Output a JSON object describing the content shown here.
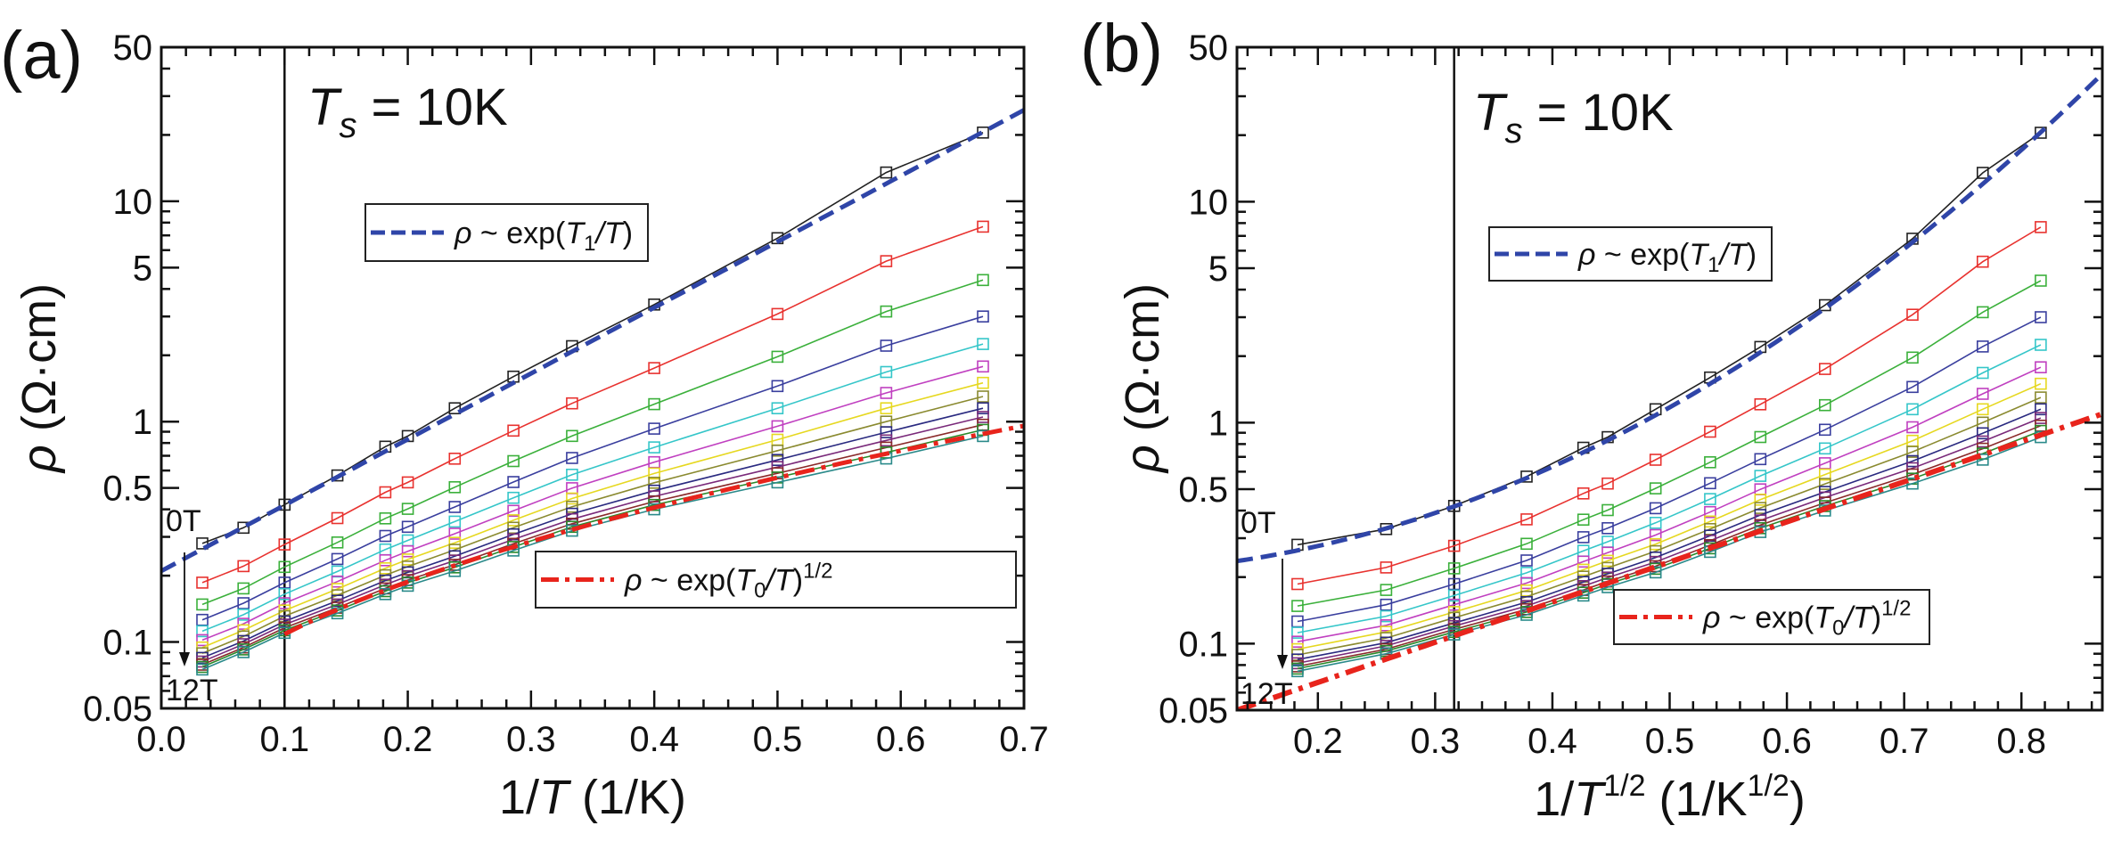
{
  "chart_data": [
    {
      "panel_label": "(a)",
      "type": "line",
      "yscale": "log",
      "xlim": [
        0.0,
        0.7
      ],
      "ylim": [
        0.05,
        50
      ],
      "xticks": [
        "0.0",
        "0.1",
        "0.2",
        "0.3",
        "0.4",
        "0.5",
        "0.6",
        "0.7"
      ],
      "xtick_values": [
        0.0,
        0.1,
        0.2,
        0.3,
        0.4,
        0.5,
        0.6,
        0.7
      ],
      "yticks": [
        "0.05",
        "0.1",
        "0.5",
        "1",
        "5",
        "10",
        "50"
      ],
      "ytick_values": [
        0.05,
        0.1,
        0.5,
        1,
        5,
        10,
        50
      ],
      "xlabel": {
        "pre": "1/",
        "var": "T",
        "post": " (1/K)"
      },
      "ylabel": {
        "symbol": "ρ",
        "unit": " (Ω·cm)"
      },
      "annotation": {
        "var": "T",
        "sub": "s",
        "post": " = 10K"
      },
      "vline_x": 0.1,
      "field_labels": {
        "top": "0T",
        "bottom": "12T"
      },
      "x": [
        0.0333,
        0.0667,
        0.1,
        0.1429,
        0.1818,
        0.2,
        0.2381,
        0.2857,
        0.3333,
        0.4,
        0.5,
        0.5882,
        0.6667
      ],
      "series": [
        {
          "name": "0T",
          "color": "#222222",
          "values": [
            0.28,
            0.33,
            0.42,
            0.57,
            0.77,
            0.86,
            1.15,
            1.6,
            2.2,
            3.4,
            6.8,
            13.5,
            20.5
          ]
        },
        {
          "color": "#e8322f",
          "values": [
            0.186,
            0.221,
            0.277,
            0.365,
            0.478,
            0.53,
            0.679,
            0.91,
            1.21,
            1.75,
            3.08,
            5.35,
            7.67
          ]
        },
        {
          "color": "#3bb03b",
          "values": [
            0.148,
            0.175,
            0.219,
            0.283,
            0.364,
            0.402,
            0.504,
            0.662,
            0.861,
            1.2,
            1.97,
            3.16,
            4.39
          ]
        },
        {
          "color": "#3a3f9e",
          "values": [
            0.126,
            0.15,
            0.186,
            0.238,
            0.303,
            0.333,
            0.41,
            0.532,
            0.684,
            0.929,
            1.45,
            2.21,
            3.0
          ]
        },
        {
          "color": "#35c6c9",
          "values": [
            0.112,
            0.133,
            0.165,
            0.209,
            0.263,
            0.289,
            0.352,
            0.451,
            0.574,
            0.764,
            1.15,
            1.68,
            2.25
          ]
        },
        {
          "color": "#c040c0",
          "values": [
            0.102,
            0.121,
            0.15,
            0.188,
            0.235,
            0.258,
            0.31,
            0.394,
            0.499,
            0.655,
            0.953,
            1.35,
            1.78
          ]
        },
        {
          "color": "#e6d820",
          "values": [
            0.0944,
            0.113,
            0.139,
            0.174,
            0.216,
            0.237,
            0.282,
            0.357,
            0.448,
            0.582,
            0.828,
            1.15,
            1.5
          ]
        },
        {
          "color": "#8a8a30",
          "values": [
            0.0889,
            0.106,
            0.131,
            0.163,
            0.201,
            0.22,
            0.262,
            0.33,
            0.411,
            0.528,
            0.738,
            1.0,
            1.3
          ]
        },
        {
          "color": "#2a2a80",
          "values": [
            0.0847,
            0.101,
            0.124,
            0.154,
            0.19,
            0.207,
            0.245,
            0.308,
            0.382,
            0.486,
            0.67,
            0.895,
            1.15
          ]
        },
        {
          "color": "#7a2a7a",
          "values": [
            0.0815,
            0.0977,
            0.12,
            0.148,
            0.182,
            0.199,
            0.234,
            0.292,
            0.361,
            0.458,
            0.622,
            0.822,
            1.05
          ]
        },
        {
          "color": "#8a2a2a",
          "values": [
            0.0789,
            0.0944,
            0.116,
            0.143,
            0.175,
            0.191,
            0.224,
            0.279,
            0.344,
            0.434,
            0.583,
            0.762,
            0.968
          ]
        },
        {
          "color": "#2a8a2a",
          "values": [
            0.0771,
            0.0925,
            0.113,
            0.139,
            0.17,
            0.186,
            0.218,
            0.27,
            0.333,
            0.419,
            0.558,
            0.724,
            0.918
          ]
        },
        {
          "name": "12T",
          "color": "#2a8a8a",
          "values": [
            0.075,
            0.09,
            0.11,
            0.135,
            0.165,
            0.18,
            0.21,
            0.26,
            0.32,
            0.4,
            0.53,
            0.68,
            0.86
          ]
        }
      ],
      "fits": [
        {
          "form": "arrhenius",
          "rho0": 0.21,
          "T1": 6.88,
          "range": [
            0.0,
            0.7
          ],
          "color": "#2f45a8",
          "style": "dashed",
          "legend": {
            "symbol": "ρ",
            "mid": " ~ exp(",
            "v1": "T",
            "sub": "1",
            "v2": "/T",
            "end": ")",
            "sup": ""
          }
        },
        {
          "form": "es_vrh",
          "rho0": 0.0289,
          "T0": 17.5,
          "range": [
            0.1,
            0.7
          ],
          "color": "#e8241c",
          "style": "dash-dot",
          "legend": {
            "symbol": "ρ",
            "mid": " ~ exp(",
            "v1": "T",
            "sub": "0",
            "v2": "/T",
            "end": ")",
            "sup": "1/2"
          }
        }
      ]
    },
    {
      "panel_label": "(b)",
      "type": "line",
      "yscale": "log",
      "xlim": [
        0.131,
        0.869
      ],
      "ylim": [
        0.05,
        50
      ],
      "xticks": [
        "0.2",
        "0.3",
        "0.4",
        "0.5",
        "0.6",
        "0.7",
        "0.8"
      ],
      "xtick_values": [
        0.2,
        0.3,
        0.4,
        0.5,
        0.6,
        0.7,
        0.8
      ],
      "yticks": [
        "0.05",
        "0.1",
        "0.5",
        "1",
        "5",
        "10",
        "50"
      ],
      "ytick_values": [
        0.05,
        0.1,
        0.5,
        1,
        5,
        10,
        50
      ],
      "xlabel": {
        "pre": "1/",
        "var": "T",
        "sup": "1/2",
        "post": " (1/K",
        "post_sup": "1/2",
        "close": ")"
      },
      "ylabel": {
        "symbol": "ρ",
        "unit": " (Ω·cm)"
      },
      "annotation": {
        "var": "T",
        "sub": "s",
        "post": " = 10K"
      },
      "vline_x": 0.3162,
      "field_labels": {
        "top": "0T",
        "bottom": "12T"
      },
      "x": [
        0.1826,
        0.2582,
        0.3162,
        0.378,
        0.4264,
        0.4472,
        0.488,
        0.5345,
        0.5774,
        0.6325,
        0.7071,
        0.767,
        0.8165
      ],
      "series_same_as_panel": "(a)",
      "fits": [
        {
          "form": "arrhenius",
          "rho0": 0.21,
          "T1": 6.88,
          "range": [
            0.131,
            0.869
          ],
          "color": "#2f45a8",
          "style": "dashed",
          "legend": {
            "symbol": "ρ",
            "mid": " ~ exp(",
            "v1": "T",
            "sub": "1",
            "v2": "/T",
            "end": ")",
            "sup": ""
          }
        },
        {
          "form": "es_vrh",
          "rho0": 0.0289,
          "T0": 17.5,
          "range": [
            0.131,
            0.869
          ],
          "color": "#e8241c",
          "style": "dash-dot",
          "legend": {
            "symbol": "ρ",
            "mid": " ~ exp(",
            "v1": "T",
            "sub": "0",
            "v2": "/T",
            "end": ")",
            "sup": "1/2"
          }
        }
      ]
    }
  ]
}
